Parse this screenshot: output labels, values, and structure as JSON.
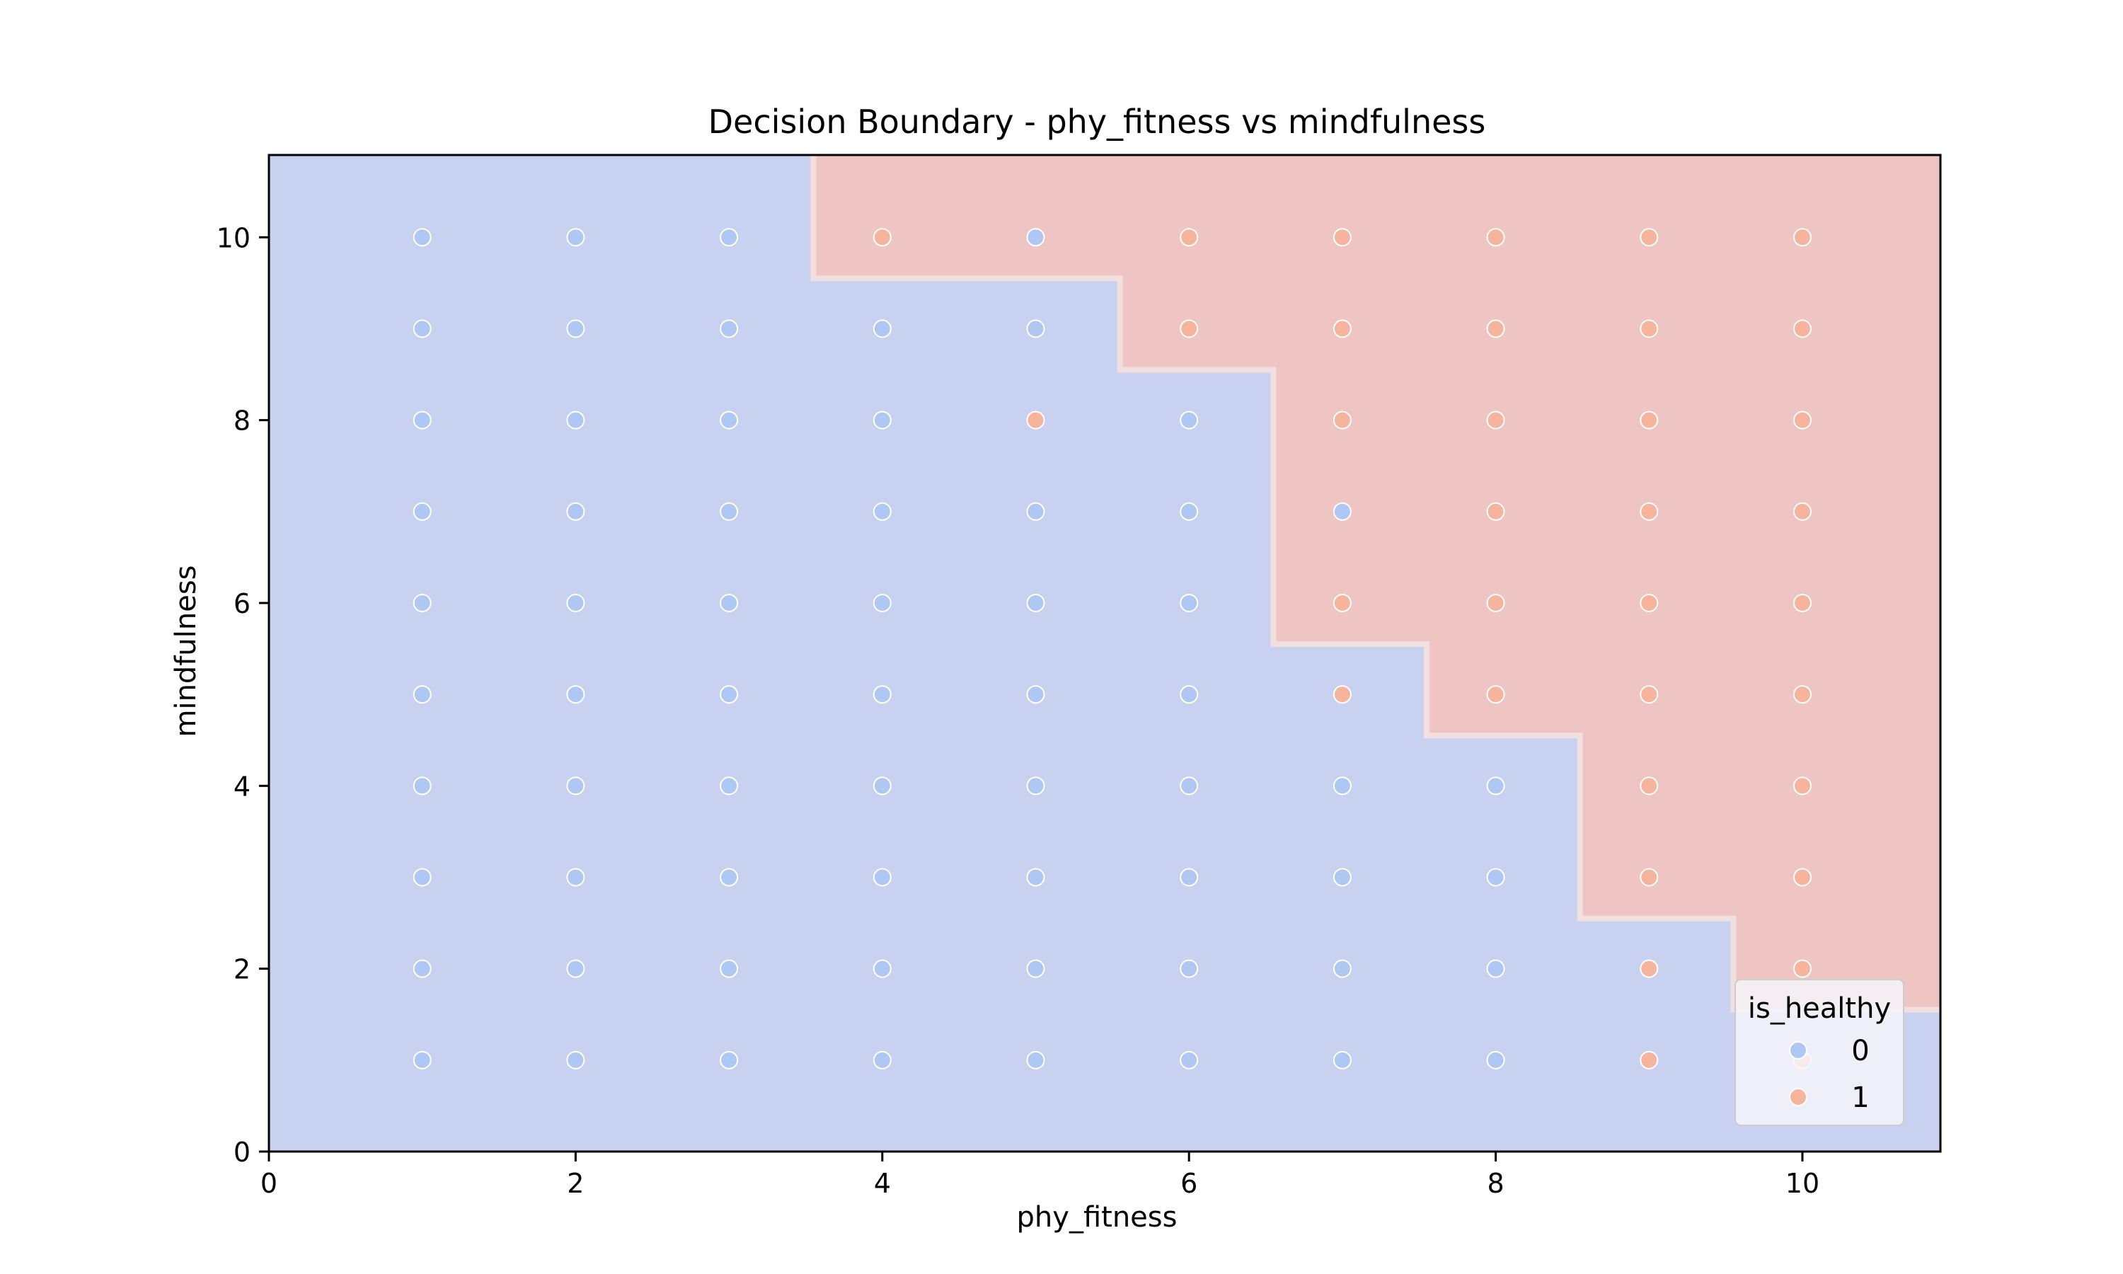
{
  "chart_data": {
    "type": "scatter",
    "title": "Decision Boundary - phy_fitness vs mindfulness",
    "xlabel": "phy_fitness",
    "ylabel": "mindfulness",
    "xlim": [
      0,
      10.9
    ],
    "ylim": [
      0,
      10.9
    ],
    "xticks": [
      0,
      2,
      4,
      6,
      8,
      10
    ],
    "yticks": [
      0,
      2,
      4,
      6,
      8,
      10
    ],
    "grid": false,
    "legend": {
      "title": "is_healthy",
      "placement": "bottom-right",
      "entries": [
        "0",
        "1"
      ]
    },
    "colors": {
      "region_0": "#c9d1f1",
      "region_1": "#efc5c4",
      "boundary": "#f2dfdf",
      "point_0": "#aec7f3",
      "point_1": "#f5b49b",
      "point_edge": "#ffffff",
      "axes_frame": "#000000"
    },
    "decision_boundary": {
      "description_of_steps": "class 1 region lies above the staircase; each step gives [x_from, x_to, mindfulness_threshold]",
      "steps": [
        [
          3.55,
          5.55,
          9.55
        ],
        [
          5.55,
          6.55,
          8.55
        ],
        [
          6.55,
          7.55,
          5.55
        ],
        [
          7.55,
          8.55,
          4.55
        ],
        [
          8.55,
          9.55,
          2.55
        ],
        [
          9.55,
          10.9,
          1.55
        ]
      ]
    },
    "series": [
      {
        "name": "0",
        "points": [
          [
            1,
            1
          ],
          [
            1,
            2
          ],
          [
            1,
            3
          ],
          [
            1,
            4
          ],
          [
            1,
            5
          ],
          [
            1,
            6
          ],
          [
            1,
            7
          ],
          [
            1,
            8
          ],
          [
            1,
            9
          ],
          [
            1,
            10
          ],
          [
            2,
            1
          ],
          [
            2,
            2
          ],
          [
            2,
            3
          ],
          [
            2,
            4
          ],
          [
            2,
            5
          ],
          [
            2,
            6
          ],
          [
            2,
            7
          ],
          [
            2,
            8
          ],
          [
            2,
            9
          ],
          [
            2,
            10
          ],
          [
            3,
            1
          ],
          [
            3,
            2
          ],
          [
            3,
            3
          ],
          [
            3,
            4
          ],
          [
            3,
            5
          ],
          [
            3,
            6
          ],
          [
            3,
            7
          ],
          [
            3,
            8
          ],
          [
            3,
            9
          ],
          [
            3,
            10
          ],
          [
            4,
            1
          ],
          [
            4,
            2
          ],
          [
            4,
            3
          ],
          [
            4,
            4
          ],
          [
            4,
            5
          ],
          [
            4,
            6
          ],
          [
            4,
            7
          ],
          [
            4,
            8
          ],
          [
            4,
            9
          ],
          [
            5,
            1
          ],
          [
            5,
            2
          ],
          [
            5,
            3
          ],
          [
            5,
            4
          ],
          [
            5,
            5
          ],
          [
            5,
            6
          ],
          [
            5,
            7
          ],
          [
            5,
            9
          ],
          [
            5,
            10
          ],
          [
            6,
            1
          ],
          [
            6,
            2
          ],
          [
            6,
            3
          ],
          [
            6,
            4
          ],
          [
            6,
            5
          ],
          [
            6,
            6
          ],
          [
            6,
            7
          ],
          [
            6,
            8
          ],
          [
            7,
            1
          ],
          [
            7,
            2
          ],
          [
            7,
            3
          ],
          [
            7,
            4
          ],
          [
            7,
            7
          ],
          [
            8,
            1
          ],
          [
            8,
            2
          ],
          [
            8,
            3
          ],
          [
            8,
            4
          ]
        ]
      },
      {
        "name": "1",
        "points": [
          [
            4,
            10
          ],
          [
            5,
            8
          ],
          [
            6,
            9
          ],
          [
            6,
            10
          ],
          [
            7,
            5
          ],
          [
            7,
            6
          ],
          [
            7,
            8
          ],
          [
            7,
            9
          ],
          [
            7,
            10
          ],
          [
            8,
            5
          ],
          [
            8,
            6
          ],
          [
            8,
            7
          ],
          [
            8,
            8
          ],
          [
            8,
            9
          ],
          [
            8,
            10
          ],
          [
            9,
            1
          ],
          [
            9,
            2
          ],
          [
            9,
            3
          ],
          [
            9,
            4
          ],
          [
            9,
            5
          ],
          [
            9,
            6
          ],
          [
            9,
            7
          ],
          [
            9,
            8
          ],
          [
            9,
            9
          ],
          [
            9,
            10
          ],
          [
            10,
            1
          ],
          [
            10,
            2
          ],
          [
            10,
            3
          ],
          [
            10,
            4
          ],
          [
            10,
            5
          ],
          [
            10,
            6
          ],
          [
            10,
            7
          ],
          [
            10,
            8
          ],
          [
            10,
            9
          ],
          [
            10,
            10
          ]
        ]
      }
    ]
  }
}
